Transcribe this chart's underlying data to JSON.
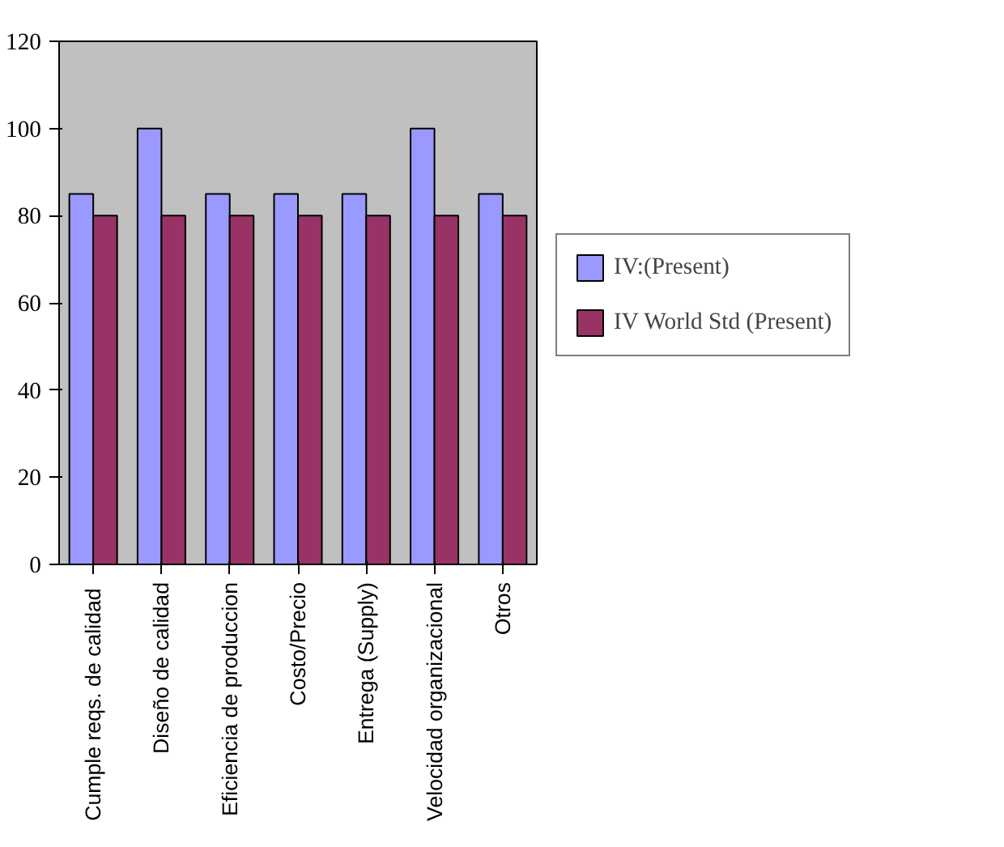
{
  "chart_data": {
    "type": "bar",
    "categories": [
      "Cumple reqs.  de calidad",
      "Diseño de calidad",
      "Eficiencia de produccion",
      "Costo/Precio",
      "Entrega (Supply)",
      "Velocidad organizacional",
      "Otros"
    ],
    "series": [
      {
        "name": "IV:(Present)",
        "color": "#9999ff",
        "values": [
          85,
          100,
          85,
          85,
          85,
          100,
          85
        ]
      },
      {
        "name": "IV World Std (Present)",
        "color": "#993366",
        "values": [
          80,
          80,
          80,
          80,
          80,
          80,
          80
        ]
      }
    ],
    "ylim": [
      0,
      120
    ],
    "yticks": [
      0,
      20,
      40,
      60,
      80,
      100,
      120
    ],
    "grid": false,
    "legend": "right"
  }
}
